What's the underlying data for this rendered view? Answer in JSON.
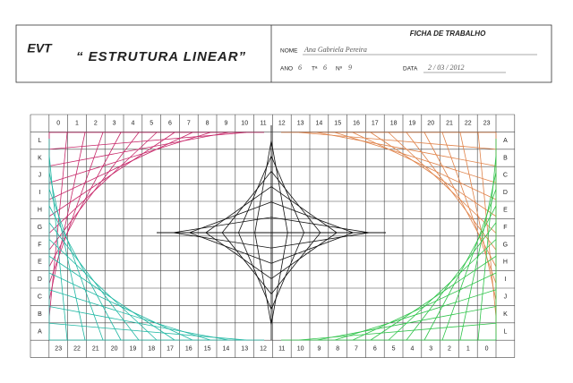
{
  "header": {
    "logo": "EVT",
    "title": "“ ESTRUTURA LINEAR”",
    "sheet": "FICHA DE TRABALHO",
    "name_label": "NOME",
    "name": "Ana Gabriela Pereira",
    "year_label": "ANO",
    "year": "6",
    "class_label": "Tª",
    "class": "6",
    "number_label": "Nº",
    "number": "9",
    "date_label": "DATA",
    "date": "2 / 03 / 2012"
  },
  "grid": {
    "top": [
      0,
      1,
      2,
      3,
      4,
      5,
      6,
      7,
      8,
      9,
      10,
      11,
      12,
      13,
      14,
      15,
      16,
      17,
      18,
      19,
      20,
      21,
      22,
      23
    ],
    "left": [
      "L",
      "K",
      "J",
      "I",
      "H",
      "G",
      "F",
      "E",
      "D",
      "C",
      "B",
      "A"
    ],
    "right": [
      "A",
      "B",
      "C",
      "D",
      "E",
      "F",
      "G",
      "H",
      "I",
      "J",
      "K",
      "L"
    ],
    "bottom": [
      23,
      22,
      21,
      20,
      19,
      18,
      17,
      16,
      15,
      14,
      13,
      12,
      11,
      10,
      9,
      8,
      7,
      6,
      5,
      4,
      3,
      2,
      1,
      0
    ]
  }
}
